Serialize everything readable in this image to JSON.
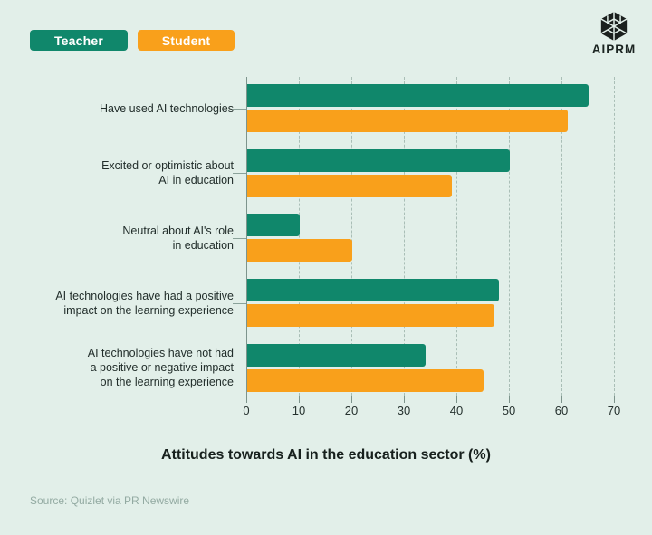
{
  "legend": {
    "items": [
      {
        "label": "Teacher",
        "color": "#10876B"
      },
      {
        "label": "Student",
        "color": "#F9A01B"
      }
    ]
  },
  "logo": {
    "text": "AIPRM"
  },
  "chart_data": {
    "type": "bar",
    "orientation": "horizontal",
    "title": "Attitudes towards AI in the education sector (%)",
    "xlabel": "",
    "ylabel": "",
    "xlim": [
      0,
      70
    ],
    "x_ticks": [
      0,
      10,
      20,
      30,
      40,
      50,
      60,
      70
    ],
    "grid": "dashed-vertical",
    "legend_position": "top-left",
    "categories": [
      "Have used AI technologies",
      "Excited or optimistic about AI in education",
      "Neutral about AI's role in education",
      "AI technologies have had a positive impact on the learning experience",
      "AI technologies have not had a positive or negative impact on the learning experience"
    ],
    "category_lines": [
      [
        "Have used AI technologies"
      ],
      [
        "Excited or optimistic about",
        "AI in education"
      ],
      [
        "Neutral about AI's role",
        "in education"
      ],
      [
        "AI technologies have had a positive",
        "impact on the learning experience"
      ],
      [
        "AI technologies have not had",
        "a positive or negative impact",
        "on the learning experience"
      ]
    ],
    "series": [
      {
        "name": "Teacher",
        "color": "#10876B",
        "values": [
          65,
          50,
          10,
          48,
          34
        ]
      },
      {
        "name": "Student",
        "color": "#F9A01B",
        "values": [
          61,
          39,
          20,
          47,
          45
        ]
      }
    ]
  },
  "source": {
    "text": "Source: Quizlet via PR Newswire"
  },
  "colors": {
    "background": "#E2EFE9",
    "teacher": "#10876B",
    "student": "#F9A01B",
    "axis": "#7D948C",
    "gridline": "#A9BEB6",
    "title_text": "#17201D",
    "source_text": "#93AAA2"
  }
}
